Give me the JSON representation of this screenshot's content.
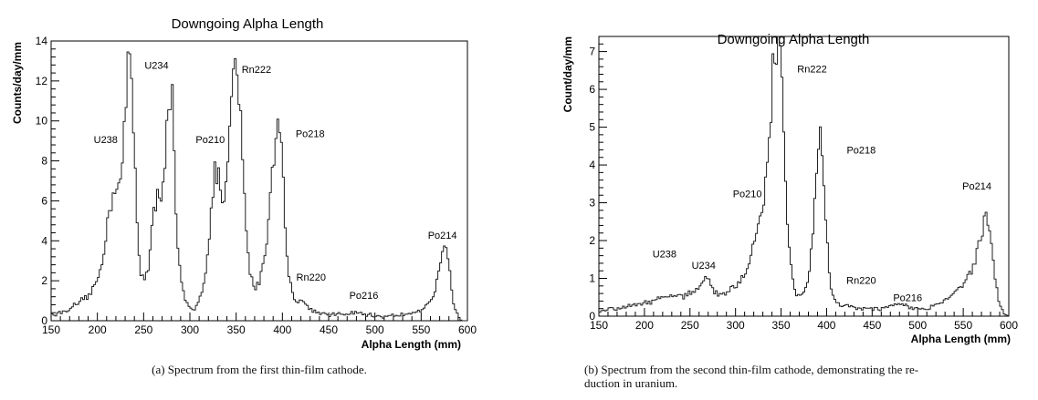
{
  "figure": {
    "caption_a": "(a) Spectrum from the first thin-film cathode.",
    "caption_b_line1": "(b) Spectrum from the second thin-film cathode, demonstrating the re-",
    "caption_b_line2": "duction in uranium."
  },
  "chart_data": [
    {
      "type": "line",
      "title": "Downgoing Alpha Length",
      "xlabel": "Alpha Length (mm)",
      "ylabel": "Counts/day/mm",
      "xlim": [
        150,
        600
      ],
      "ylim": [
        0,
        14
      ],
      "xticks": [
        150,
        200,
        250,
        300,
        350,
        400,
        450,
        500,
        550,
        600
      ],
      "yticks": [
        0,
        2,
        4,
        6,
        8,
        10,
        12,
        14
      ],
      "grid": false,
      "series": [
        {
          "x": [
            150,
            160,
            170,
            180,
            190,
            200,
            205,
            210,
            215,
            220,
            225,
            230,
            233,
            235,
            238,
            242,
            246,
            250,
            255,
            260,
            265,
            270,
            275,
            278,
            281,
            285,
            290,
            295,
            300,
            305,
            310,
            315,
            320,
            325,
            328,
            332,
            336,
            340,
            345,
            348,
            352,
            356,
            360,
            365,
            370,
            375,
            380,
            385,
            390,
            395,
            397,
            400,
            403,
            406,
            410,
            415,
            420,
            425,
            430,
            440,
            450,
            460,
            470,
            480,
            490,
            500,
            510,
            520,
            530,
            540,
            550,
            555,
            560,
            565,
            570,
            573,
            576,
            579,
            582,
            585,
            590,
            595,
            600
          ],
          "y": [
            0.3,
            0.4,
            0.6,
            0.9,
            1.2,
            2.0,
            3.0,
            4.5,
            6.0,
            7.0,
            6.8,
            10.0,
            12.5,
            13.3,
            11.0,
            6.0,
            2.5,
            2.2,
            2.5,
            5.0,
            6.2,
            6.6,
            9.5,
            11.5,
            11.0,
            5.0,
            2.0,
            1.0,
            0.6,
            0.6,
            1.0,
            2.0,
            3.5,
            6.5,
            7.6,
            7.0,
            5.5,
            7.0,
            10.5,
            13.3,
            12.0,
            9.0,
            5.0,
            2.5,
            1.5,
            2.0,
            3.0,
            5.0,
            8.0,
            9.5,
            10.2,
            8.5,
            5.0,
            2.5,
            1.5,
            1.0,
            1.1,
            0.8,
            0.6,
            0.4,
            0.3,
            0.3,
            0.35,
            0.4,
            0.3,
            0.25,
            0.2,
            0.25,
            0.3,
            0.4,
            0.5,
            0.8,
            1.0,
            1.5,
            2.5,
            3.4,
            3.5,
            3.0,
            2.0,
            0.8,
            0.2,
            0.0,
            0.0
          ]
        }
      ],
      "annotations": [
        {
          "text": "U238",
          "x": 209,
          "y": 8.9
        },
        {
          "text": "U234",
          "x": 264,
          "y": 12.6
        },
        {
          "text": "Po210",
          "x": 322,
          "y": 8.9
        },
        {
          "text": "Rn222",
          "x": 372,
          "y": 12.4
        },
        {
          "text": "Po218",
          "x": 430,
          "y": 9.2
        },
        {
          "text": "Rn220",
          "x": 431,
          "y": 2.0
        },
        {
          "text": "Po216",
          "x": 488,
          "y": 1.1
        },
        {
          "text": "Po214",
          "x": 573,
          "y": 4.1
        }
      ]
    },
    {
      "type": "line",
      "title": "Downgoing Alpha Length",
      "xlabel": "Alpha Length (mm)",
      "ylabel": "Count/day/mm",
      "xlim": [
        150,
        600
      ],
      "ylim": [
        0,
        7.4
      ],
      "xticks": [
        150,
        200,
        250,
        300,
        350,
        400,
        450,
        500,
        550,
        600
      ],
      "yticks": [
        0,
        1,
        2,
        3,
        4,
        5,
        6,
        7
      ],
      "grid": false,
      "series": [
        {
          "x": [
            150,
            160,
            170,
            180,
            190,
            200,
            210,
            220,
            230,
            240,
            250,
            255,
            260,
            265,
            268,
            272,
            276,
            280,
            285,
            290,
            300,
            310,
            315,
            320,
            325,
            330,
            335,
            338,
            341,
            344,
            347,
            350,
            353,
            356,
            360,
            365,
            370,
            375,
            380,
            385,
            388,
            391,
            394,
            397,
            400,
            403,
            406,
            410,
            415,
            420,
            430,
            440,
            450,
            460,
            470,
            475,
            480,
            485,
            490,
            500,
            510,
            520,
            530,
            540,
            550,
            560,
            565,
            570,
            573,
            576,
            579,
            582,
            585,
            590,
            595,
            600
          ],
          "y": [
            0.15,
            0.2,
            0.2,
            0.25,
            0.3,
            0.35,
            0.4,
            0.5,
            0.55,
            0.5,
            0.6,
            0.7,
            0.85,
            1.0,
            1.05,
            0.9,
            0.7,
            0.6,
            0.55,
            0.6,
            0.8,
            1.1,
            1.4,
            1.9,
            2.4,
            2.8,
            3.8,
            5.0,
            6.5,
            7.1,
            7.0,
            6.5,
            5.0,
            3.0,
            1.5,
            0.7,
            0.5,
            0.6,
            1.0,
            2.2,
            3.8,
            4.8,
            4.5,
            3.5,
            2.2,
            1.1,
            0.6,
            0.4,
            0.3,
            0.3,
            0.25,
            0.2,
            0.2,
            0.2,
            0.25,
            0.3,
            0.35,
            0.3,
            0.2,
            0.2,
            0.2,
            0.3,
            0.4,
            0.6,
            0.9,
            1.3,
            1.7,
            2.2,
            2.5,
            2.65,
            2.4,
            1.8,
            1.0,
            0.3,
            0.05,
            0.0
          ]
        }
      ],
      "annotations": [
        {
          "text": "U238",
          "x": 222,
          "y": 1.55
        },
        {
          "text": "U234",
          "x": 265,
          "y": 1.25
        },
        {
          "text": "Rn222",
          "x": 384,
          "y": 6.45
        },
        {
          "text": "Po218",
          "x": 438,
          "y": 4.3
        },
        {
          "text": "Po210",
          "x": 313,
          "y": 3.15
        },
        {
          "text": "Rn220",
          "x": 438,
          "y": 0.85
        },
        {
          "text": "Po216",
          "x": 489,
          "y": 0.4
        },
        {
          "text": "Po214",
          "x": 565,
          "y": 3.35
        }
      ]
    }
  ]
}
